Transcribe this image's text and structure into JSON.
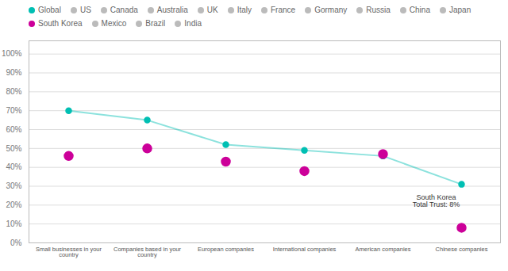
{
  "chart_data": {
    "type": "line",
    "categories": [
      "Small businesses in your\ncountry",
      "Companies based in your\ncountry",
      "European companies",
      "International companies",
      "American companies",
      "Chinese companies"
    ],
    "series": [
      {
        "name": "Global",
        "color": "#00BFB3",
        "type": "line",
        "marker": "o",
        "values": [
          70,
          65,
          52,
          49,
          46,
          31
        ]
      },
      {
        "name": "US",
        "color": "#BBBBBB",
        "values": [
          null,
          null,
          null,
          null,
          null,
          null
        ]
      },
      {
        "name": "Canada",
        "color": "#BBBBBB",
        "values": [
          null,
          null,
          null,
          null,
          null,
          null
        ]
      },
      {
        "name": "Australia",
        "color": "#BBBBBB",
        "values": [
          null,
          null,
          null,
          null,
          null,
          null
        ]
      },
      {
        "name": "UK",
        "color": "#BBBBBB",
        "values": [
          null,
          null,
          null,
          null,
          null,
          null
        ]
      },
      {
        "name": "Italy",
        "color": "#BBBBBB",
        "values": [
          null,
          null,
          null,
          null,
          null,
          null
        ]
      },
      {
        "name": "France",
        "color": "#BBBBBB",
        "values": [
          null,
          null,
          null,
          null,
          null,
          null
        ]
      },
      {
        "name": "Gormany",
        "color": "#BBBBBB",
        "values": [
          null,
          null,
          null,
          null,
          null,
          null
        ]
      },
      {
        "name": "Russia",
        "color": "#BBBBBB",
        "values": [
          null,
          null,
          null,
          null,
          null,
          null
        ]
      },
      {
        "name": "China",
        "color": "#BBBBBB",
        "values": [
          null,
          null,
          null,
          null,
          null,
          null
        ]
      },
      {
        "name": "Japan",
        "color": "#BBBBBB",
        "values": [
          null,
          null,
          null,
          null,
          null,
          null
        ]
      },
      {
        "name": "South Korea",
        "color": "#CC0099",
        "type": "scatter",
        "marker": "o",
        "values": [
          46,
          50,
          43,
          38,
          47,
          8
        ]
      },
      {
        "name": "Mexico",
        "color": "#BBBBBB",
        "values": [
          null,
          null,
          null,
          null,
          null,
          null
        ]
      },
      {
        "name": "Brazil",
        "color": "#BBBBBB",
        "values": [
          null,
          null,
          null,
          null,
          null,
          null
        ]
      },
      {
        "name": "India",
        "color": "#BBBBBB",
        "values": [
          null,
          null,
          null,
          null,
          null,
          null
        ]
      }
    ],
    "ylim": [
      0,
      107
    ],
    "yticks": [
      {
        "value": 0,
        "label": "0%"
      },
      {
        "value": 10,
        "label": "10%"
      },
      {
        "value": 20,
        "label": "20%"
      },
      {
        "value": 30,
        "label": "30%"
      },
      {
        "value": 40,
        "label": "40%"
      },
      {
        "value": 50,
        "label": "50%"
      },
      {
        "value": 60,
        "label": "60%"
      },
      {
        "value": 70,
        "label": "70%"
      },
      {
        "value": 80,
        "label": "80%"
      },
      {
        "value": 90,
        "label": "90%"
      },
      {
        "value": 100,
        "label": "100%"
      }
    ],
    "grid": true,
    "legend": "top",
    "annotations": [
      {
        "text": "South Korea\nTotal Trust: 8%",
        "x": "Chinese companies",
        "y": 8
      }
    ]
  }
}
